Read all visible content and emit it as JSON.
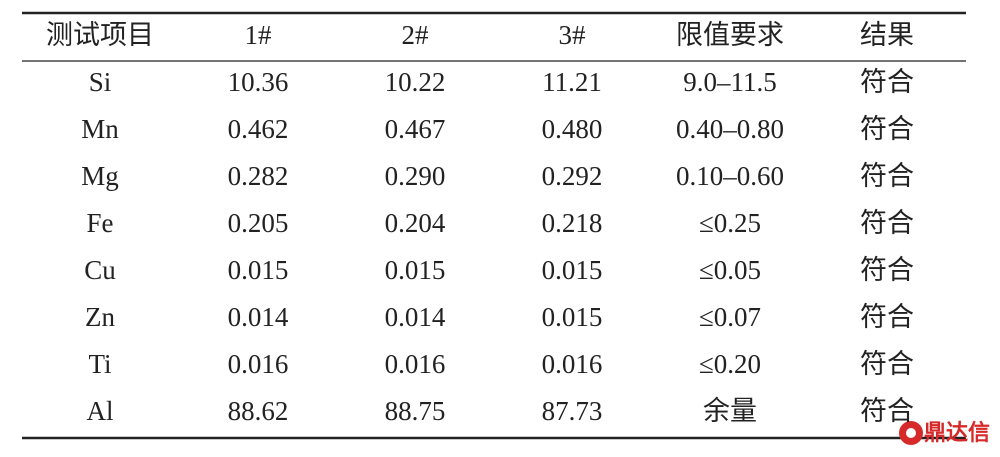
{
  "table": {
    "header": [
      "测试项目",
      "1#",
      "2#",
      "3#",
      "限值要求",
      "结果"
    ],
    "rows": [
      [
        "Si",
        "10.36",
        "10.22",
        "11.21",
        "9.0–11.5",
        "符合"
      ],
      [
        "Mn",
        "0.462",
        "0.467",
        "0.480",
        "0.40–0.80",
        "符合"
      ],
      [
        "Mg",
        "0.282",
        "0.290",
        "0.292",
        "0.10–0.60",
        "符合"
      ],
      [
        "Fe",
        "0.205",
        "0.204",
        "0.218",
        "≤0.25",
        "符合"
      ],
      [
        "Cu",
        "0.015",
        "0.015",
        "0.015",
        "≤0.05",
        "符合"
      ],
      [
        "Zn",
        "0.014",
        "0.014",
        "0.015",
        "≤0.07",
        "符合"
      ],
      [
        "Ti",
        "0.016",
        "0.016",
        "0.016",
        "≤0.20",
        "符合"
      ],
      [
        "Al",
        "88.62",
        "88.75",
        "87.73",
        "余量",
        "符合"
      ]
    ]
  },
  "watermark": "鼎达信"
}
